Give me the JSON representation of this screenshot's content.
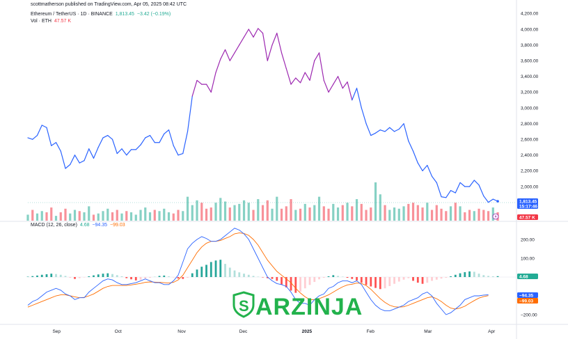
{
  "header": {
    "published": "scottmatherson published on TradingView.com, Apr 05, 2025 08:42 UTC",
    "symbol": "Ethereum / TetherUS · 1D · BINANCE",
    "price": "1,813.45",
    "change": "−3.42 (−0.19%)",
    "vol_label": "Vol · ETH",
    "vol_value": "47.57 K",
    "macd_label": "MACD (12, 26, close)",
    "macd_hist": "4.68",
    "macd_line": "−94.35",
    "macd_signal": "−99.03"
  },
  "badges": {
    "price": "1,813.45",
    "countdown": "15:17:46",
    "volume": "47.57 K",
    "hist": "4.68",
    "macd": "−94.35",
    "signal": "−99.03"
  },
  "watermark": "ARZINJA",
  "colors": {
    "up": "#22ab94",
    "down": "#f23645",
    "price_line": "#2962ff",
    "price_peak": "#9c27b0",
    "macd": "#2962ff",
    "signal": "#ff6d00",
    "watermark": "#22b24c"
  },
  "chart_data": [
    {
      "type": "line",
      "title": "Ethereum / TetherUS · 1D · BINANCE",
      "ylim": [
        1600,
        4200
      ],
      "y_ticks": [
        "4,200.00",
        "4,000.00",
        "3,800.00",
        "3,600.00",
        "3,400.00",
        "3,200.00",
        "3,000.00",
        "2,800.00",
        "2,600.00",
        "2,400.00",
        "2,200.00",
        "2,000.00"
      ],
      "x_ticks": [
        "Sep",
        "Oct",
        "Nov",
        "Dec",
        "2025",
        "Feb",
        "Mar",
        "Apr"
      ],
      "x_tick_days": [
        14,
        44,
        75,
        105,
        136,
        167,
        195,
        226
      ],
      "series": [
        {
          "values": [
            2620,
            2600,
            2650,
            2780,
            2750,
            2520,
            2560,
            2450,
            2230,
            2280,
            2400,
            2300,
            2330,
            2480,
            2360,
            2500,
            2620,
            2650,
            2600,
            2420,
            2480,
            2400,
            2470,
            2470,
            2530,
            2620,
            2650,
            2560,
            2560,
            2670,
            2720,
            2520,
            2400,
            2420,
            2700,
            3150,
            3350,
            3300,
            3300,
            3200,
            3450,
            3620,
            3740,
            3600,
            3700,
            3800,
            3900,
            4000,
            3900,
            4010,
            3950,
            3600,
            3800,
            3950,
            3700,
            3500,
            3300,
            3380,
            3320,
            3450,
            3350,
            3600,
            3700,
            3350,
            3200,
            3300,
            3400,
            3250,
            3330,
            3100,
            3250,
            3000,
            2800,
            2650,
            2680,
            2720,
            2700,
            2750,
            2700,
            2730,
            2800,
            2580,
            2450,
            2300,
            2200,
            2270,
            2130,
            2050,
            1870,
            1860,
            1950,
            1920,
            2050,
            2000,
            2000,
            2080,
            2020,
            1880,
            1800,
            1840,
            1813
          ]
        }
      ]
    },
    {
      "type": "bar",
      "title": "Vol · ETH",
      "values": [
        10,
        18,
        12,
        16,
        14,
        22,
        8,
        14,
        20,
        12,
        18,
        16,
        14,
        24,
        10,
        12,
        16,
        20,
        14,
        18,
        12,
        16,
        14,
        10,
        18,
        22,
        14,
        18,
        16,
        20,
        14,
        12,
        18,
        16,
        40,
        26,
        34,
        30,
        20,
        22,
        30,
        38,
        32,
        22,
        26,
        28,
        34,
        30,
        18,
        36,
        26,
        34,
        20,
        40,
        20,
        24,
        36,
        18,
        20,
        28,
        22,
        26,
        40,
        24,
        20,
        28,
        22,
        26,
        30,
        24,
        36,
        28,
        18,
        22,
        64,
        44,
        26,
        18,
        22,
        20,
        24,
        28,
        30,
        26,
        22,
        30,
        18,
        26,
        20,
        16,
        24,
        30,
        24,
        14,
        18,
        16,
        20,
        18,
        16,
        22,
        14
      ],
      "up": [
        1,
        0,
        1,
        1,
        0,
        0,
        1,
        0,
        0,
        1,
        1,
        0,
        1,
        1,
        0,
        1,
        1,
        1,
        0,
        0,
        1,
        0,
        1,
        1,
        1,
        1,
        1,
        0,
        1,
        1,
        1,
        0,
        0,
        1,
        1,
        1,
        1,
        0,
        0,
        0,
        1,
        1,
        1,
        0,
        1,
        1,
        1,
        1,
        0,
        1,
        0,
        0,
        1,
        1,
        0,
        0,
        0,
        1,
        0,
        1,
        0,
        1,
        1,
        0,
        0,
        1,
        1,
        0,
        1,
        0,
        1,
        0,
        0,
        0,
        1,
        1,
        0,
        1,
        1,
        1,
        1,
        0,
        0,
        0,
        0,
        1,
        0,
        0,
        0,
        0,
        1,
        0,
        1,
        0,
        0,
        1,
        0,
        0,
        0,
        1,
        0
      ],
      "latest": "47.57 K"
    },
    {
      "type": "bar",
      "title": "MACD (12, 26, close)",
      "ylim": [
        -220,
        260
      ],
      "y_ticks": [
        "200.00",
        "100.00",
        "−200.00"
      ],
      "series": [
        {
          "name": "",
          "kind": "histogram",
          "values": [
            2,
            5,
            8,
            12,
            15,
            18,
            16,
            12,
            6,
            -4,
            -10,
            -6,
            -2,
            4,
            9,
            14,
            18,
            20,
            16,
            10,
            4,
            -6,
            -12,
            -18,
            -14,
            -8,
            -4,
            2,
            6,
            8,
            4,
            -2,
            -8,
            -10,
            -4,
            20,
            40,
            55,
            65,
            80,
            88,
            92,
            70,
            50,
            35,
            25,
            18,
            12,
            6,
            2,
            -2,
            -6,
            -10,
            -20,
            -40,
            -55,
            -72,
            -84,
            -78,
            -60,
            -42,
            -26,
            -12,
            -4,
            4,
            10,
            6,
            2,
            -4,
            -10,
            -18,
            -30,
            -42,
            -50,
            -58,
            -64,
            -60,
            -48,
            -36,
            -24,
            -14,
            -6,
            -20,
            -30,
            -36,
            -30,
            -20,
            -14,
            -8,
            -4,
            4,
            12,
            20,
            26,
            30,
            28,
            18,
            10,
            6,
            4,
            4.68
          ]
        },
        {
          "name": "",
          "kind": "line",
          "values": [
            -150,
            -130,
            -120,
            -100,
            -80,
            -70,
            -60,
            -70,
            -90,
            -100,
            -120,
            -110,
            -110,
            -80,
            -60,
            -40,
            -20,
            -10,
            -15,
            -30,
            -40,
            -40,
            -35,
            -30,
            -20,
            -10,
            -20,
            -30,
            -30,
            -40,
            -40,
            -20,
            10,
            80,
            150,
            180,
            200,
            215,
            205,
            190,
            190,
            200,
            220,
            240,
            260,
            250,
            230,
            200,
            150,
            100,
            50,
            0,
            -20,
            -35,
            -40,
            -50,
            -80,
            -120,
            -140,
            -140,
            -150,
            -120,
            -100,
            -90,
            -60,
            -50,
            -30,
            -20,
            -20,
            -30,
            -20,
            -40,
            -80,
            -120,
            -150,
            -170,
            -180,
            -180,
            -170,
            -160,
            -150,
            -130,
            -120,
            -110,
            -90,
            -80,
            -100,
            -140,
            -170,
            -200,
            -190,
            -170,
            -150,
            -120,
            -110,
            -100,
            -100,
            -96,
            -94.35
          ]
        },
        {
          "name": "",
          "kind": "line",
          "values": [
            -160,
            -150,
            -140,
            -130,
            -120,
            -110,
            -100,
            -95,
            -95,
            -100,
            -105,
            -110,
            -108,
            -100,
            -90,
            -75,
            -60,
            -50,
            -45,
            -45,
            -45,
            -45,
            -42,
            -38,
            -34,
            -28,
            -26,
            -27,
            -28,
            -30,
            -32,
            -28,
            -15,
            10,
            50,
            90,
            130,
            160,
            180,
            190,
            190,
            195,
            205,
            215,
            230,
            235,
            232,
            222,
            200,
            170,
            130,
            90,
            60,
            30,
            10,
            -10,
            -30,
            -60,
            -85,
            -105,
            -120,
            -120,
            -115,
            -105,
            -95,
            -80,
            -65,
            -52,
            -42,
            -38,
            -32,
            -34,
            -45,
            -65,
            -90,
            -115,
            -135,
            -150,
            -158,
            -160,
            -158,
            -150,
            -140,
            -130,
            -120,
            -110,
            -105,
            -115,
            -130,
            -150,
            -165,
            -170,
            -165,
            -155,
            -140,
            -125,
            -112,
            -104,
            -99.03
          ]
        }
      ]
    }
  ]
}
